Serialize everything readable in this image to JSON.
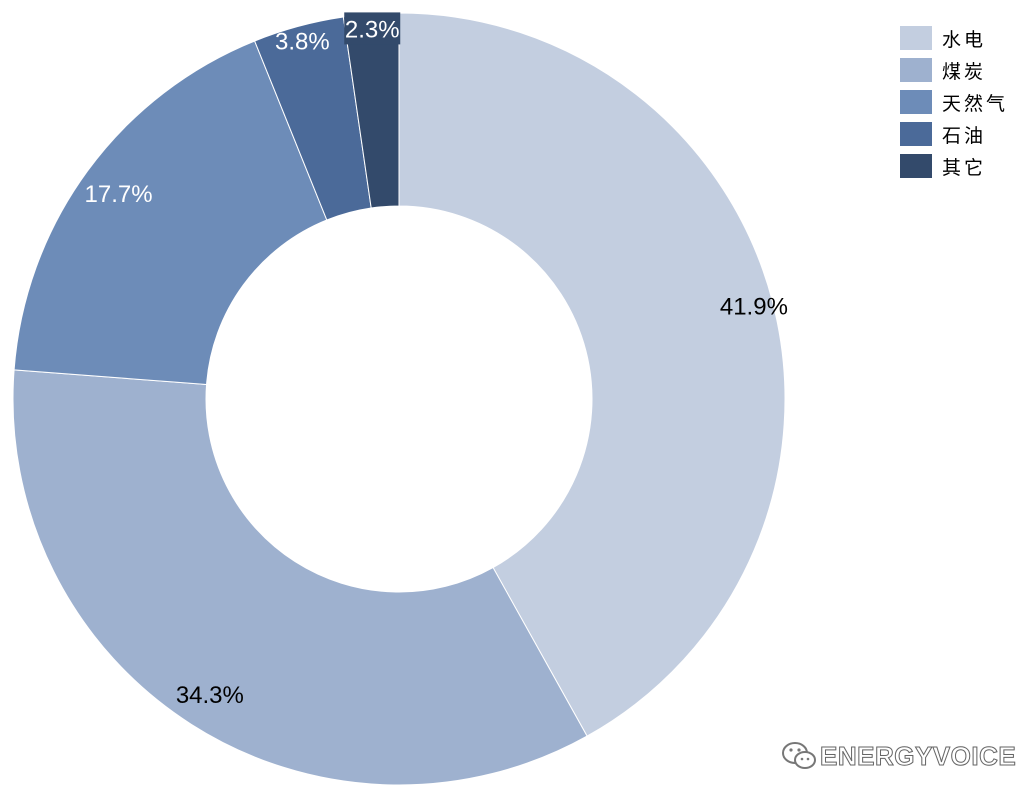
{
  "chart_data": {
    "type": "pie",
    "donut": true,
    "categories": [
      "水电",
      "煤炭",
      "天然气",
      "石油",
      "其它"
    ],
    "values": [
      41.9,
      34.3,
      17.7,
      3.8,
      2.3
    ],
    "labels": [
      "41.9%",
      "34.3%",
      "17.7%",
      "3.8%",
      "2.3%"
    ],
    "colors": [
      "#c3cee0",
      "#9eb1cf",
      "#6d8cb8",
      "#4b6a99",
      "#334a6b"
    ],
    "legend_position": "top-right",
    "title": ""
  },
  "watermark": {
    "text": "ENERGYVOICE",
    "icon": "wechat-icon"
  }
}
